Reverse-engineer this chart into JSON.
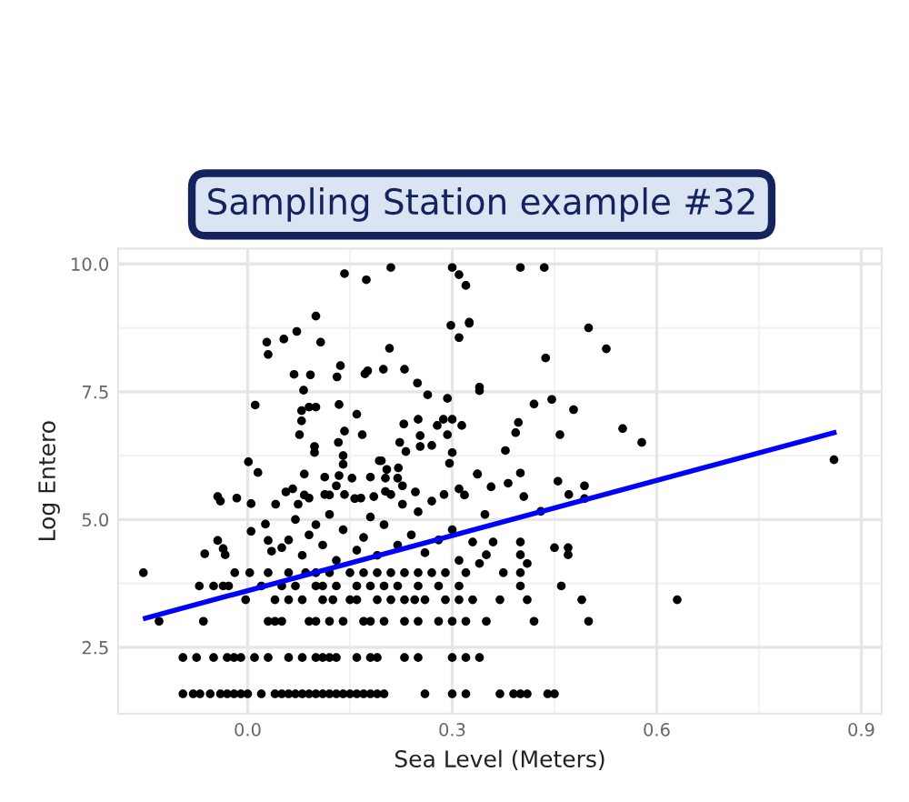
{
  "chart_data": {
    "type": "scatter",
    "title": "Sampling Station example #32",
    "xlabel": "Sea Level (Meters)",
    "ylabel": "Log Entero",
    "xlim": [
      -0.19,
      0.93
    ],
    "ylim": [
      1.2,
      10.3
    ],
    "xticks": [
      {
        "value": 0,
        "label": "0.0"
      },
      0.3,
      0.6,
      0.9
    ],
    "yticks": [
      2.5,
      {
        "value": 5,
        "label": "5.0"
      },
      7.5,
      {
        "value": 10,
        "label": "10.0"
      }
    ],
    "grid": true,
    "marker": "circle",
    "series": [
      {
        "color": "#000000",
        "x": [
          0.4,
          0.435,
          0.325,
          0.5,
          0.526,
          0.437,
          0.34,
          0.42,
          0.446,
          0.478,
          0.397,
          0.393,
          0.458,
          0.55,
          0.578,
          0.378,
          0.86,
          0.337,
          0.4,
          0.357,
          0.382,
          0.455,
          0.405,
          0.471,
          0.494,
          0.494,
          0.348,
          0.43,
          0.142,
          0.174,
          0.21,
          0.3,
          0.31,
          0.32,
          0.1,
          0.298,
          0.31,
          0.325,
          0.028,
          0.053,
          0.072,
          0.107,
          0.03,
          0.208,
          0.136,
          0.068,
          0.092,
          0.131,
          0.172,
          0.176,
          0.199,
          0.23,
          0.249,
          0.34,
          0.082,
          0.011,
          0.079,
          0.09,
          0.1,
          0.134,
          0.264,
          0.293,
          0.16,
          0.079,
          0.142,
          0.168,
          0.229,
          0.25,
          0.278,
          0.287,
          0.3,
          0.314,
          0.076,
          0.133,
          0.223,
          0.232,
          0.253,
          0.253,
          0.27,
          0.293,
          0.3,
          0.296,
          0.098,
          0.098,
          0.14,
          0.193,
          0.196,
          0.204,
          0.14,
          0.221,
          0.227,
          0.001,
          0.015,
          0.083,
          0.113,
          0.134,
          0.153,
          0.18,
          0.202,
          0.22,
          0.337,
          -0.044,
          -0.04,
          -0.016,
          0.005,
          0.041,
          0.056,
          0.066,
          0.074,
          0.083,
          0.09,
          0.113,
          0.12,
          0.13,
          0.142,
          0.157,
          0.166,
          0.185,
          0.202,
          0.21,
          0.227,
          0.246,
          0.27,
          0.288,
          0.31,
          0.318,
          0.03,
          0.05,
          0.06,
          0.08,
          0.09,
          0.1,
          0.11,
          0.13,
          0.14,
          0.16,
          0.17,
          0.19,
          0.2,
          0.22,
          0.24,
          0.26,
          0.28,
          0.3,
          0.31,
          0.34,
          0.41,
          0.35,
          0.4,
          0.47,
          0.45,
          0.47,
          0.33,
          0.36,
          0.4,
          -0.044,
          -0.063,
          -0.036,
          -0.033,
          0.005,
          0.026,
          0.035,
          0.12,
          0.18,
          0.25,
          0.07,
          -0.153,
          -0.019,
          0.003,
          0.03,
          0.06,
          0.085,
          0.1,
          0.12,
          0.15,
          0.17,
          0.19,
          0.21,
          0.23,
          0.25,
          0.27,
          0.29,
          0.32,
          0.375,
          0.4,
          -0.071,
          -0.05,
          -0.036,
          -0.028,
          0.02,
          0.05,
          0.07,
          0.1,
          0.11,
          0.13,
          0.16,
          0.18,
          0.2,
          0.22,
          0.25,
          0.28,
          0.31,
          0.4,
          0.46,
          -0.003,
          0.04,
          0.06,
          0.08,
          0.11,
          0.125,
          0.15,
          0.16,
          0.19,
          0.21,
          0.23,
          0.245,
          0.26,
          0.29,
          0.31,
          0.33,
          0.37,
          0.41,
          0.49,
          0.63,
          -0.13,
          -0.065,
          0.03,
          0.04,
          0.05,
          0.09,
          0.1,
          0.12,
          0.14,
          0.17,
          0.18,
          0.2,
          0.23,
          0.25,
          0.28,
          0.3,
          0.32,
          0.35,
          0.42,
          0.5,
          -0.095,
          -0.075,
          -0.05,
          -0.03,
          -0.02,
          -0.01,
          0.01,
          0.03,
          0.06,
          0.08,
          0.1,
          0.11,
          0.12,
          0.13,
          0.16,
          0.18,
          0.19,
          0.23,
          0.25,
          0.3,
          0.32,
          0.34,
          -0.095,
          -0.08,
          -0.07,
          -0.055,
          -0.04,
          -0.03,
          -0.02,
          -0.01,
          0.0,
          0.02,
          0.04,
          0.05,
          0.06,
          0.07,
          0.08,
          0.09,
          0.1,
          0.11,
          0.12,
          0.13,
          0.14,
          0.15,
          0.16,
          0.17,
          0.18,
          0.19,
          0.2,
          0.26,
          0.3,
          0.32,
          0.37,
          0.39,
          0.4,
          0.41,
          0.44,
          0.45
        ],
        "values": [
          9.93,
          9.93,
          8.84,
          8.75,
          8.34,
          8.16,
          7.52,
          7.26,
          7.35,
          7.15,
          6.9,
          6.7,
          6.66,
          6.78,
          6.51,
          6.35,
          6.17,
          5.89,
          5.91,
          5.64,
          5.71,
          5.75,
          5.45,
          5.49,
          5.66,
          5.41,
          5.1,
          5.16,
          9.81,
          9.69,
          9.93,
          9.93,
          9.79,
          9.58,
          8.98,
          8.8,
          8.56,
          8.86,
          8.47,
          8.53,
          8.68,
          8.47,
          8.23,
          8.35,
          8.01,
          7.84,
          7.83,
          7.79,
          7.85,
          7.91,
          7.94,
          7.94,
          7.67,
          7.59,
          7.53,
          7.24,
          7.13,
          7.2,
          7.2,
          7.25,
          7.44,
          7.37,
          7.06,
          6.93,
          6.73,
          6.66,
          6.87,
          6.96,
          6.84,
          6.96,
          6.96,
          6.84,
          6.66,
          6.51,
          6.51,
          6.33,
          6.64,
          6.43,
          6.45,
          6.66,
          6.31,
          6.1,
          6.43,
          6.31,
          6.25,
          6.15,
          6.15,
          5.98,
          6.08,
          6.01,
          5.66,
          6.13,
          5.92,
          5.89,
          5.83,
          5.86,
          5.81,
          5.83,
          5.81,
          5.81,
          5.89,
          5.45,
          5.36,
          5.42,
          5.31,
          5.3,
          5.54,
          5.6,
          5.3,
          5.48,
          5.42,
          5.49,
          5.48,
          5.66,
          5.49,
          5.41,
          5.42,
          5.45,
          5.55,
          5.49,
          5.3,
          5.54,
          5.36,
          5.49,
          5.6,
          5.48,
          4.59,
          4.45,
          4.6,
          4.3,
          4.7,
          4.9,
          4.5,
          4.2,
          4.8,
          4.4,
          4.65,
          4.3,
          4.9,
          4.5,
          4.7,
          4.35,
          4.6,
          4.8,
          4.2,
          4.14,
          4.14,
          4.31,
          4.31,
          4.31,
          4.45,
          4.45,
          4.56,
          4.56,
          4.56,
          4.59,
          4.33,
          4.43,
          4.31,
          4.77,
          4.91,
          4.38,
          5.1,
          5.05,
          5.15,
          5.0,
          3.96,
          3.96,
          3.96,
          3.96,
          3.96,
          3.96,
          3.96,
          3.96,
          3.96,
          3.96,
          3.96,
          3.96,
          3.96,
          3.96,
          3.96,
          3.96,
          3.96,
          3.96,
          3.96,
          3.7,
          3.7,
          3.7,
          3.7,
          3.7,
          3.7,
          3.7,
          3.7,
          3.7,
          3.7,
          3.7,
          3.7,
          3.7,
          3.7,
          3.7,
          3.7,
          3.7,
          3.7,
          3.7,
          3.43,
          3.43,
          3.43,
          3.43,
          3.43,
          3.43,
          3.43,
          3.43,
          3.43,
          3.43,
          3.43,
          3.43,
          3.43,
          3.43,
          3.43,
          3.43,
          3.43,
          3.43,
          3.43,
          3.43,
          3.01,
          3.01,
          3.01,
          3.01,
          3.01,
          3.01,
          3.01,
          3.01,
          3.01,
          3.01,
          3.01,
          3.01,
          3.01,
          3.01,
          3.01,
          3.01,
          3.01,
          3.01,
          3.01,
          3.01,
          2.3,
          2.3,
          2.3,
          2.3,
          2.3,
          2.3,
          2.3,
          2.3,
          2.3,
          2.3,
          2.3,
          2.3,
          2.3,
          2.3,
          2.3,
          2.3,
          2.3,
          2.3,
          2.3,
          2.3,
          2.3,
          2.3,
          1.59,
          1.59,
          1.59,
          1.59,
          1.59,
          1.59,
          1.59,
          1.59,
          1.59,
          1.59,
          1.59,
          1.59,
          1.59,
          1.59,
          1.59,
          1.59,
          1.59,
          1.59,
          1.59,
          1.59,
          1.59,
          1.59,
          1.59,
          1.59,
          1.59,
          1.59,
          1.59,
          1.59,
          1.59,
          1.59,
          1.59,
          1.59,
          1.59,
          1.59,
          1.59,
          1.59
        ]
      },
      {
        "type": "line",
        "color": "#0000ff",
        "marker": "none",
        "x": [
          -0.15,
          0.86
        ],
        "values": [
          3.07,
          6.7
        ]
      }
    ]
  }
}
